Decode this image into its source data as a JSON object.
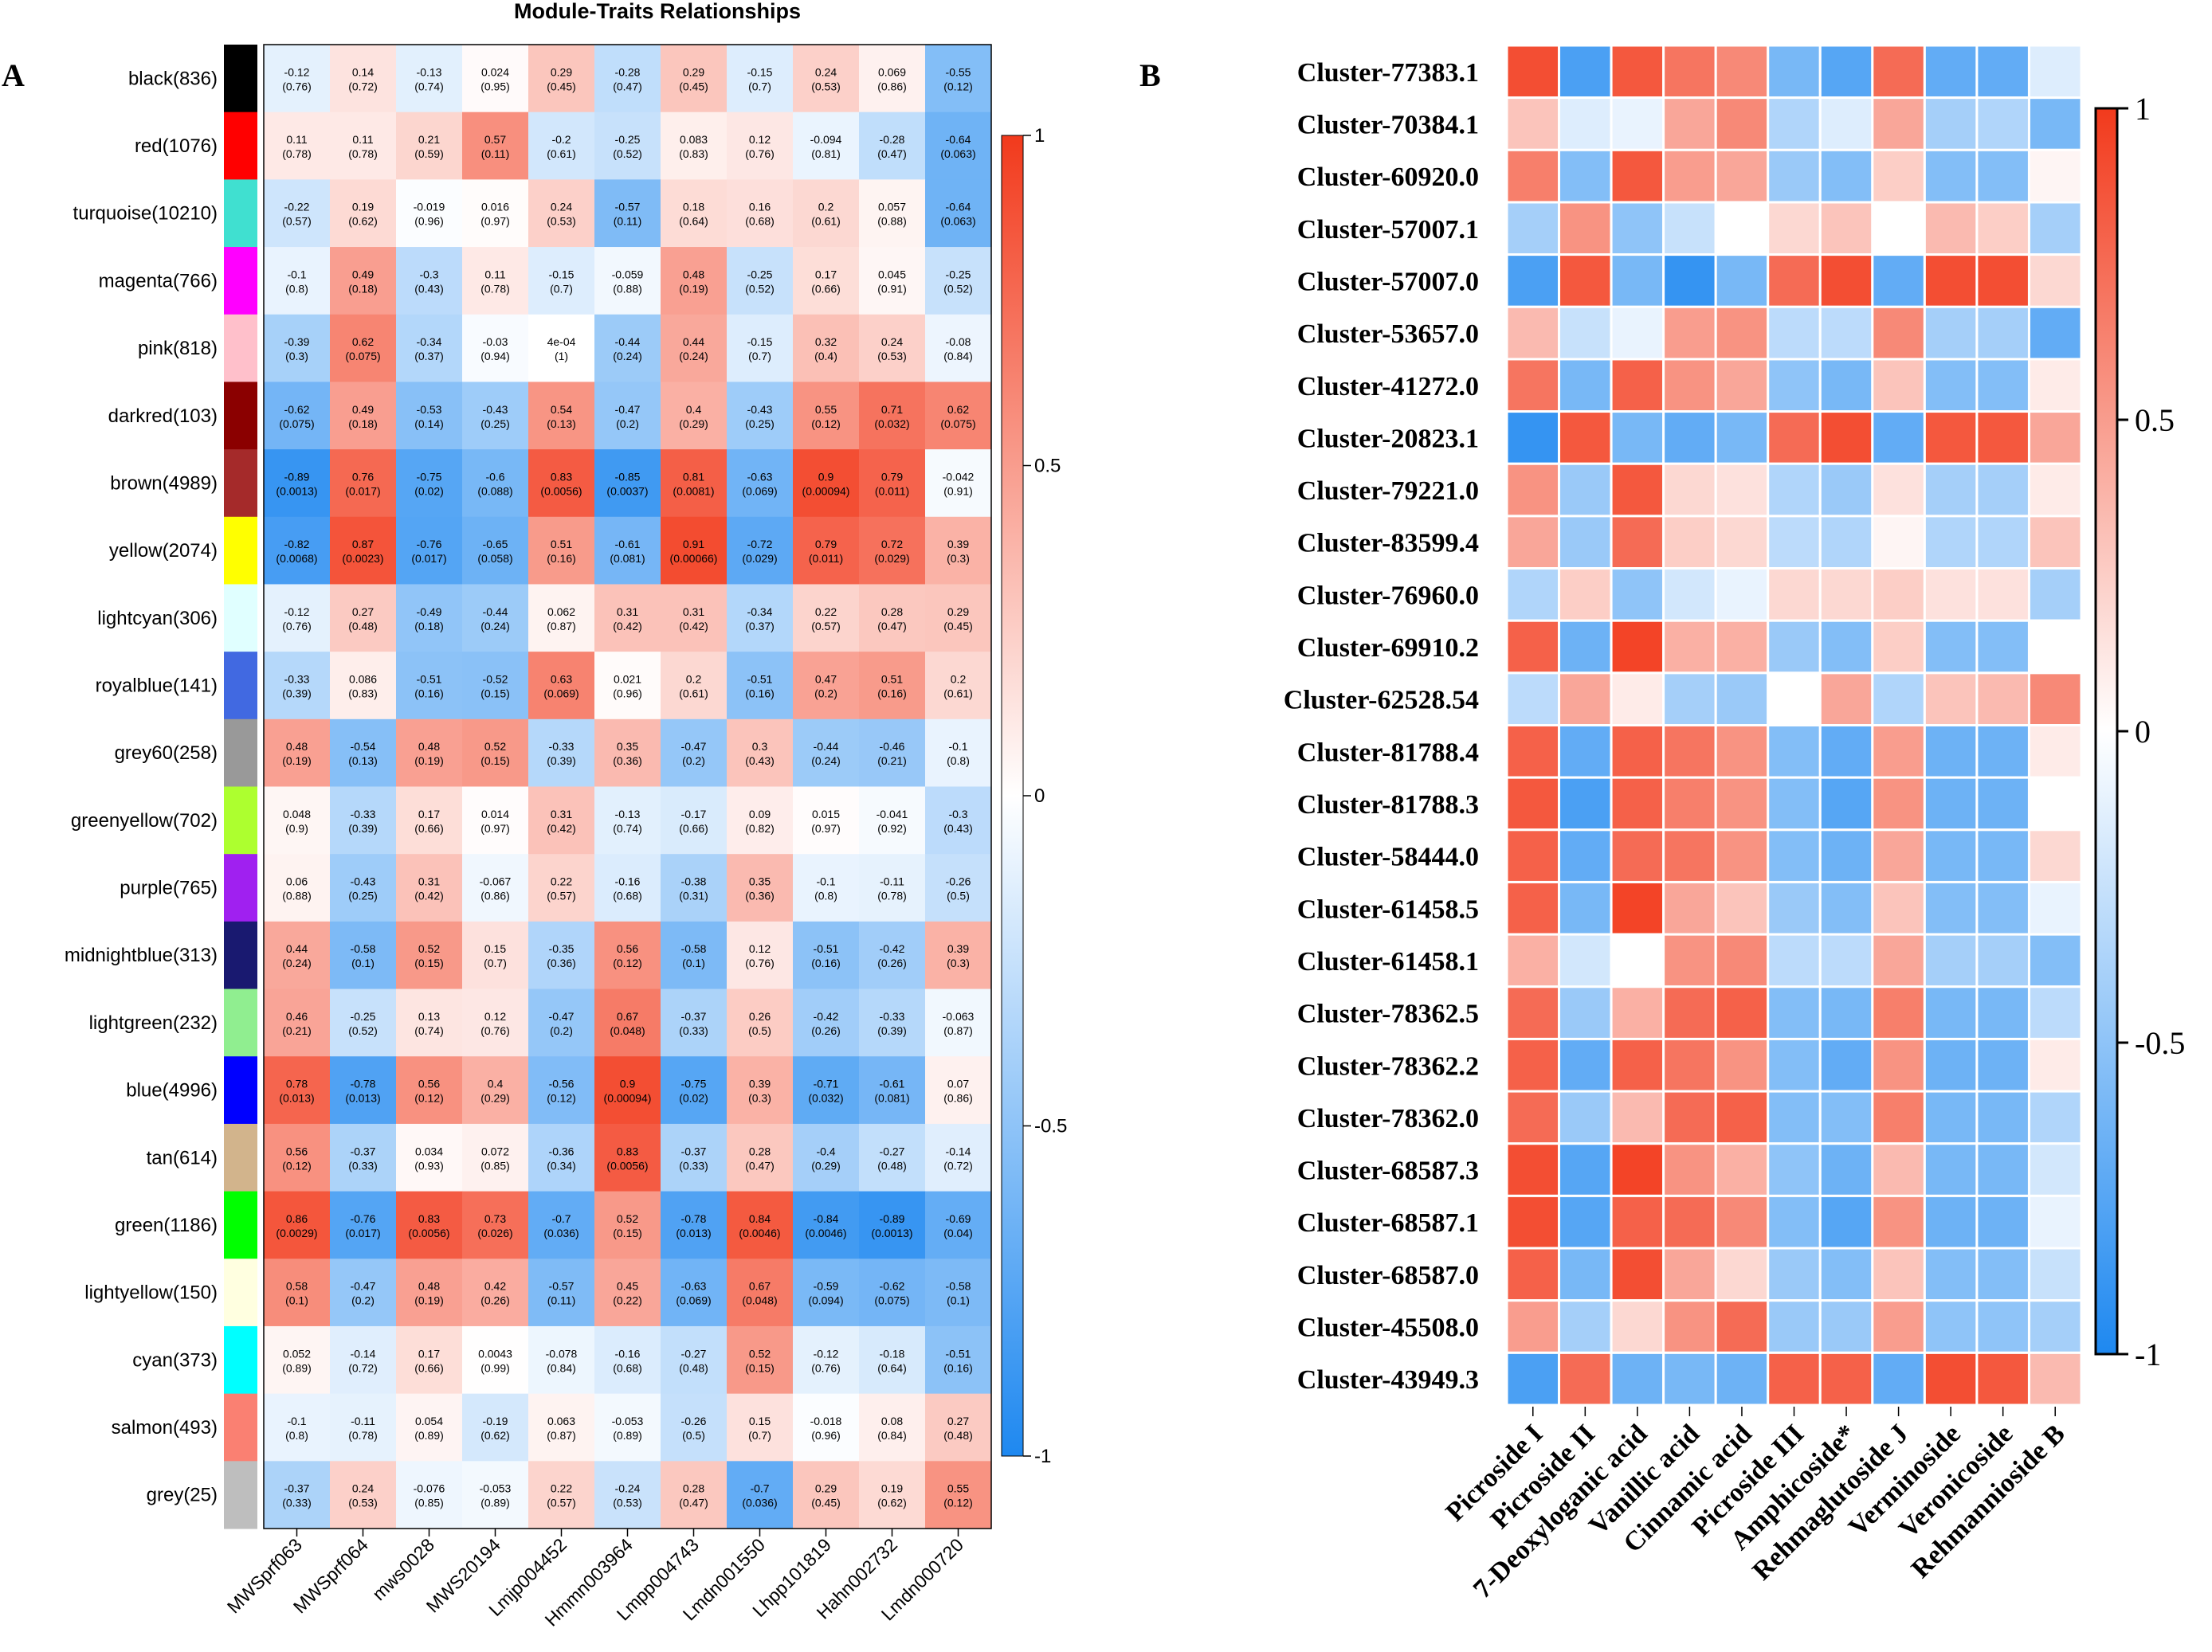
{
  "panel_a": {
    "letter": "A",
    "chart_data": {
      "type": "heatmap",
      "title": "Module-Traits Relationships",
      "modules": [
        {
          "label": "black(836)",
          "color": "#000000"
        },
        {
          "label": "red(1076)",
          "color": "#ff0000"
        },
        {
          "label": "turquoise(10210)",
          "color": "#40e0d0"
        },
        {
          "label": "magenta(766)",
          "color": "#ff00ff"
        },
        {
          "label": "pink(818)",
          "color": "#ffc0cb"
        },
        {
          "label": "darkred(103)",
          "color": "#8b0000"
        },
        {
          "label": "brown(4989)",
          "color": "#a52a2a"
        },
        {
          "label": "yellow(2074)",
          "color": "#ffff00"
        },
        {
          "label": "lightcyan(306)",
          "color": "#e0ffff"
        },
        {
          "label": "royalblue(141)",
          "color": "#4169e1"
        },
        {
          "label": "grey60(258)",
          "color": "#999999"
        },
        {
          "label": "greenyellow(702)",
          "color": "#adff2f"
        },
        {
          "label": "purple(765)",
          "color": "#a020f0"
        },
        {
          "label": "midnightblue(313)",
          "color": "#191970"
        },
        {
          "label": "lightgreen(232)",
          "color": "#90ee90"
        },
        {
          "label": "blue(4996)",
          "color": "#0000ff"
        },
        {
          "label": "tan(614)",
          "color": "#d2b48c"
        },
        {
          "label": "green(1186)",
          "color": "#00ff00"
        },
        {
          "label": "lightyellow(150)",
          "color": "#ffffe0"
        },
        {
          "label": "cyan(373)",
          "color": "#00ffff"
        },
        {
          "label": "salmon(493)",
          "color": "#fa8072"
        },
        {
          "label": "grey(25)",
          "color": "#bebebe"
        }
      ],
      "traits": [
        "MWSprf063",
        "MWSprf064",
        "mws0028",
        "MWS20194",
        "Lmjp004452",
        "Hmmn003964",
        "Lmpp004743",
        "Lmdn001550",
        "Lhpp101819",
        "Hahn002732",
        "Lmdn000720"
      ],
      "values": [
        [
          "-0.12",
          "0.14",
          "-0.13",
          "0.024",
          "0.29",
          "-0.28",
          "0.29",
          "-0.15",
          "0.24",
          "0.069",
          "-0.55"
        ],
        [
          "0.11",
          "0.11",
          "0.21",
          "0.57",
          "-0.2",
          "-0.25",
          "0.083",
          "0.12",
          "-0.094",
          "-0.28",
          "-0.64"
        ],
        [
          "-0.22",
          "0.19",
          "-0.019",
          "0.016",
          "0.24",
          "-0.57",
          "0.18",
          "0.16",
          "0.2",
          "0.057",
          "-0.64"
        ],
        [
          "-0.1",
          "0.49",
          "-0.3",
          "0.11",
          "-0.15",
          "-0.059",
          "0.48",
          "-0.25",
          "0.17",
          "0.045",
          "-0.25"
        ],
        [
          "-0.39",
          "0.62",
          "-0.34",
          "-0.03",
          "4e-04",
          "-0.44",
          "0.44",
          "-0.15",
          "0.32",
          "0.24",
          "-0.08"
        ],
        [
          "-0.62",
          "0.49",
          "-0.53",
          "-0.43",
          "0.54",
          "-0.47",
          "0.4",
          "-0.43",
          "0.55",
          "0.71",
          "0.62"
        ],
        [
          "-0.89",
          "0.76",
          "-0.75",
          "-0.6",
          "0.83",
          "-0.85",
          "0.81",
          "-0.63",
          "0.9",
          "0.79",
          "-0.042"
        ],
        [
          "-0.82",
          "0.87",
          "-0.76",
          "-0.65",
          "0.51",
          "-0.61",
          "0.91",
          "-0.72",
          "0.79",
          "0.72",
          "0.39"
        ],
        [
          "-0.12",
          "0.27",
          "-0.49",
          "-0.44",
          "0.062",
          "0.31",
          "0.31",
          "-0.34",
          "0.22",
          "0.28",
          "0.29"
        ],
        [
          "-0.33",
          "0.086",
          "-0.51",
          "-0.52",
          "0.63",
          "0.021",
          "0.2",
          "-0.51",
          "0.47",
          "0.51",
          "0.2"
        ],
        [
          "0.48",
          "-0.54",
          "0.48",
          "0.52",
          "-0.33",
          "0.35",
          "-0.47",
          "0.3",
          "-0.44",
          "-0.46",
          "-0.1"
        ],
        [
          "0.048",
          "-0.33",
          "0.17",
          "0.014",
          "0.31",
          "-0.13",
          "-0.17",
          "0.09",
          "0.015",
          "-0.041",
          "-0.3"
        ],
        [
          "0.06",
          "-0.43",
          "0.31",
          "-0.067",
          "0.22",
          "-0.16",
          "-0.38",
          "0.35",
          "-0.1",
          "-0.11",
          "-0.26"
        ],
        [
          "0.44",
          "-0.58",
          "0.52",
          "0.15",
          "-0.35",
          "0.56",
          "-0.58",
          "0.12",
          "-0.51",
          "-0.42",
          "0.39"
        ],
        [
          "0.46",
          "-0.25",
          "0.13",
          "0.12",
          "-0.47",
          "0.67",
          "-0.37",
          "0.26",
          "-0.42",
          "-0.33",
          "-0.063"
        ],
        [
          "0.78",
          "-0.78",
          "0.56",
          "0.4",
          "-0.56",
          "0.9",
          "-0.75",
          "0.39",
          "-0.71",
          "-0.61",
          "0.07"
        ],
        [
          "0.56",
          "-0.37",
          "0.034",
          "0.072",
          "-0.36",
          "0.83",
          "-0.37",
          "0.28",
          "-0.4",
          "-0.27",
          "-0.14"
        ],
        [
          "0.86",
          "-0.76",
          "0.83",
          "0.73",
          "-0.7",
          "0.52",
          "-0.78",
          "0.84",
          "-0.84",
          "-0.89",
          "-0.69"
        ],
        [
          "0.58",
          "-0.47",
          "0.48",
          "0.42",
          "-0.57",
          "0.45",
          "-0.63",
          "0.67",
          "-0.59",
          "-0.62",
          "-0.58"
        ],
        [
          "0.052",
          "-0.14",
          "0.17",
          "0.0043",
          "-0.078",
          "-0.16",
          "-0.27",
          "0.52",
          "-0.12",
          "-0.18",
          "-0.51"
        ],
        [
          "-0.1",
          "-0.11",
          "0.054",
          "-0.19",
          "0.063",
          "-0.053",
          "-0.26",
          "0.15",
          "-0.018",
          "0.08",
          "0.27"
        ],
        [
          "-0.37",
          "0.24",
          "-0.076",
          "-0.053",
          "0.22",
          "-0.24",
          "0.28",
          "-0.7",
          "0.29",
          "0.19",
          "0.55"
        ]
      ],
      "pvalues": [
        [
          "(0.76)",
          "(0.72)",
          "(0.74)",
          "(0.95)",
          "(0.45)",
          "(0.47)",
          "(0.45)",
          "(0.7)",
          "(0.53)",
          "(0.86)",
          "(0.12)"
        ],
        [
          "(0.78)",
          "(0.78)",
          "(0.59)",
          "(0.11)",
          "(0.61)",
          "(0.52)",
          "(0.83)",
          "(0.76)",
          "(0.81)",
          "(0.47)",
          "(0.063)"
        ],
        [
          "(0.57)",
          "(0.62)",
          "(0.96)",
          "(0.97)",
          "(0.53)",
          "(0.11)",
          "(0.64)",
          "(0.68)",
          "(0.61)",
          "(0.88)",
          "(0.063)"
        ],
        [
          "(0.8)",
          "(0.18)",
          "(0.43)",
          "(0.78)",
          "(0.7)",
          "(0.88)",
          "(0.19)",
          "(0.52)",
          "(0.66)",
          "(0.91)",
          "(0.52)"
        ],
        [
          "(0.3)",
          "(0.075)",
          "(0.37)",
          "(0.94)",
          "(1)",
          "(0.24)",
          "(0.24)",
          "(0.7)",
          "(0.4)",
          "(0.53)",
          "(0.84)"
        ],
        [
          "(0.075)",
          "(0.18)",
          "(0.14)",
          "(0.25)",
          "(0.13)",
          "(0.2)",
          "(0.29)",
          "(0.25)",
          "(0.12)",
          "(0.032)",
          "(0.075)"
        ],
        [
          "(0.0013)",
          "(0.017)",
          "(0.02)",
          "(0.088)",
          "(0.0056)",
          "(0.0037)",
          "(0.0081)",
          "(0.069)",
          "(0.00094)",
          "(0.011)",
          "(0.91)"
        ],
        [
          "(0.0068)",
          "(0.0023)",
          "(0.017)",
          "(0.058)",
          "(0.16)",
          "(0.081)",
          "(0.00066)",
          "(0.029)",
          "(0.011)",
          "(0.029)",
          "(0.3)"
        ],
        [
          "(0.76)",
          "(0.48)",
          "(0.18)",
          "(0.24)",
          "(0.87)",
          "(0.42)",
          "(0.42)",
          "(0.37)",
          "(0.57)",
          "(0.47)",
          "(0.45)"
        ],
        [
          "(0.39)",
          "(0.83)",
          "(0.16)",
          "(0.15)",
          "(0.069)",
          "(0.96)",
          "(0.61)",
          "(0.16)",
          "(0.2)",
          "(0.16)",
          "(0.61)"
        ],
        [
          "(0.19)",
          "(0.13)",
          "(0.19)",
          "(0.15)",
          "(0.39)",
          "(0.36)",
          "(0.2)",
          "(0.43)",
          "(0.24)",
          "(0.21)",
          "(0.8)"
        ],
        [
          "(0.9)",
          "(0.39)",
          "(0.66)",
          "(0.97)",
          "(0.42)",
          "(0.74)",
          "(0.66)",
          "(0.82)",
          "(0.97)",
          "(0.92)",
          "(0.43)"
        ],
        [
          "(0.88)",
          "(0.25)",
          "(0.42)",
          "(0.86)",
          "(0.57)",
          "(0.68)",
          "(0.31)",
          "(0.36)",
          "(0.8)",
          "(0.78)",
          "(0.5)"
        ],
        [
          "(0.24)",
          "(0.1)",
          "(0.15)",
          "(0.7)",
          "(0.36)",
          "(0.12)",
          "(0.1)",
          "(0.76)",
          "(0.16)",
          "(0.26)",
          "(0.3)"
        ],
        [
          "(0.21)",
          "(0.52)",
          "(0.74)",
          "(0.76)",
          "(0.2)",
          "(0.048)",
          "(0.33)",
          "(0.5)",
          "(0.26)",
          "(0.39)",
          "(0.87)"
        ],
        [
          "(0.013)",
          "(0.013)",
          "(0.12)",
          "(0.29)",
          "(0.12)",
          "(0.00094)",
          "(0.02)",
          "(0.3)",
          "(0.032)",
          "(0.081)",
          "(0.86)"
        ],
        [
          "(0.12)",
          "(0.33)",
          "(0.93)",
          "(0.85)",
          "(0.34)",
          "(0.0056)",
          "(0.33)",
          "(0.47)",
          "(0.29)",
          "(0.48)",
          "(0.72)"
        ],
        [
          "(0.0029)",
          "(0.017)",
          "(0.0056)",
          "(0.026)",
          "(0.036)",
          "(0.15)",
          "(0.013)",
          "(0.0046)",
          "(0.0046)",
          "(0.0013)",
          "(0.04)"
        ],
        [
          "(0.1)",
          "(0.2)",
          "(0.19)",
          "(0.26)",
          "(0.11)",
          "(0.22)",
          "(0.069)",
          "(0.048)",
          "(0.094)",
          "(0.075)",
          "(0.1)"
        ],
        [
          "(0.89)",
          "(0.72)",
          "(0.66)",
          "(0.99)",
          "(0.84)",
          "(0.68)",
          "(0.48)",
          "(0.15)",
          "(0.76)",
          "(0.64)",
          "(0.16)"
        ],
        [
          "(0.8)",
          "(0.78)",
          "(0.89)",
          "(0.62)",
          "(0.87)",
          "(0.89)",
          "(0.5)",
          "(0.7)",
          "(0.96)",
          "(0.84)",
          "(0.48)"
        ],
        [
          "(0.33)",
          "(0.53)",
          "(0.85)",
          "(0.89)",
          "(0.57)",
          "(0.53)",
          "(0.47)",
          "(0.036)",
          "(0.45)",
          "(0.62)",
          "(0.12)"
        ]
      ],
      "color_scale": {
        "low": "#1e88f0",
        "mid": "#ffffff",
        "high": "#f23a1c",
        "range": [
          -1,
          1
        ]
      },
      "legend_ticks": [
        "1",
        "0.5",
        "0",
        "-0.5",
        "-1"
      ]
    }
  },
  "panel_b": {
    "letter": "B",
    "chart_data": {
      "type": "heatmap",
      "clusters": [
        "Cluster-77383.1",
        "Cluster-70384.1",
        "Cluster-60920.0",
        "Cluster-57007.1",
        "Cluster-57007.0",
        "Cluster-53657.0",
        "Cluster-41272.0",
        "Cluster-20823.1",
        "Cluster-79221.0",
        "Cluster-83599.4",
        "Cluster-76960.0",
        "Cluster-69910.2",
        "Cluster-62528.54",
        "Cluster-81788.4",
        "Cluster-81788.3",
        "Cluster-58444.0",
        "Cluster-61458.5",
        "Cluster-61458.1",
        "Cluster-78362.5",
        "Cluster-78362.2",
        "Cluster-78362.0",
        "Cluster-68587.3",
        "Cluster-68587.1",
        "Cluster-68587.0",
        "Cluster-45508.0",
        "Cluster-43949.3"
      ],
      "traits": [
        "Picroside I",
        "Picroside II",
        "7-Deoxyloganic acid",
        "Vanillic acid",
        "Cinnamic acid",
        "Picroside III",
        "Amphicoside*",
        "Rehmaglutoside J",
        "Verminoside",
        "Veronicoside",
        "Rehmannioside B"
      ],
      "values": [
        [
          0.9,
          -0.8,
          0.85,
          0.7,
          0.6,
          -0.6,
          -0.75,
          0.75,
          -0.7,
          -0.7,
          -0.15
        ],
        [
          0.3,
          -0.15,
          -0.1,
          0.45,
          0.6,
          -0.35,
          -0.15,
          0.45,
          -0.4,
          -0.35,
          -0.6
        ],
        [
          0.65,
          -0.55,
          0.85,
          0.5,
          0.45,
          -0.45,
          -0.55,
          0.25,
          -0.55,
          -0.55,
          0.05
        ],
        [
          -0.4,
          0.55,
          -0.5,
          -0.25,
          0.0,
          0.2,
          0.3,
          0.0,
          0.35,
          0.25,
          -0.4
        ],
        [
          -0.8,
          0.85,
          -0.6,
          -0.9,
          -0.6,
          0.75,
          0.9,
          -0.7,
          0.9,
          0.9,
          0.2
        ],
        [
          0.35,
          -0.25,
          -0.1,
          0.5,
          0.55,
          -0.3,
          -0.3,
          0.6,
          -0.4,
          -0.4,
          -0.7
        ],
        [
          0.7,
          -0.6,
          0.8,
          0.55,
          0.45,
          -0.5,
          -0.6,
          0.3,
          -0.55,
          -0.55,
          0.1
        ],
        [
          -0.9,
          0.85,
          -0.6,
          -0.7,
          -0.6,
          0.75,
          0.9,
          -0.7,
          0.85,
          0.85,
          0.45
        ],
        [
          0.55,
          -0.45,
          0.85,
          0.2,
          0.15,
          -0.35,
          -0.45,
          0.15,
          -0.4,
          -0.4,
          0.1
        ],
        [
          0.45,
          -0.45,
          0.75,
          0.25,
          0.2,
          -0.3,
          -0.35,
          0.05,
          -0.35,
          -0.35,
          0.3
        ],
        [
          -0.35,
          0.25,
          -0.5,
          -0.2,
          -0.1,
          0.2,
          0.2,
          0.25,
          0.15,
          0.15,
          -0.4
        ],
        [
          0.8,
          -0.65,
          0.95,
          0.4,
          0.4,
          -0.45,
          -0.55,
          0.25,
          -0.55,
          -0.55,
          0.0
        ],
        [
          -0.3,
          0.45,
          0.1,
          -0.4,
          -0.45,
          0.0,
          0.45,
          -0.35,
          0.3,
          0.35,
          0.6
        ],
        [
          0.8,
          -0.7,
          0.8,
          0.7,
          0.55,
          -0.55,
          -0.7,
          0.5,
          -0.65,
          -0.65,
          0.1
        ],
        [
          0.85,
          -0.8,
          0.8,
          0.65,
          0.55,
          -0.55,
          -0.75,
          0.55,
          -0.65,
          -0.65,
          0.0
        ],
        [
          0.8,
          -0.7,
          0.75,
          0.7,
          0.55,
          -0.55,
          -0.65,
          0.45,
          -0.6,
          -0.6,
          0.2
        ],
        [
          0.8,
          -0.6,
          0.95,
          0.45,
          0.3,
          -0.45,
          -0.55,
          0.3,
          -0.55,
          -0.55,
          -0.1
        ],
        [
          0.4,
          -0.2,
          0.0,
          0.55,
          0.6,
          -0.3,
          -0.3,
          0.45,
          -0.4,
          -0.4,
          -0.55
        ],
        [
          0.75,
          -0.45,
          0.4,
          0.75,
          0.8,
          -0.55,
          -0.6,
          0.65,
          -0.6,
          -0.6,
          -0.3
        ],
        [
          0.8,
          -0.7,
          0.8,
          0.7,
          0.55,
          -0.55,
          -0.7,
          0.55,
          -0.65,
          -0.65,
          0.1
        ],
        [
          0.75,
          -0.45,
          0.35,
          0.75,
          0.8,
          -0.55,
          -0.55,
          0.65,
          -0.6,
          -0.6,
          -0.35
        ],
        [
          0.9,
          -0.75,
          0.95,
          0.55,
          0.4,
          -0.5,
          -0.65,
          0.35,
          -0.6,
          -0.6,
          -0.2
        ],
        [
          0.9,
          -0.75,
          0.8,
          0.75,
          0.6,
          -0.55,
          -0.75,
          0.55,
          -0.65,
          -0.65,
          -0.1
        ],
        [
          0.8,
          -0.6,
          0.9,
          0.45,
          0.2,
          -0.45,
          -0.55,
          0.3,
          -0.55,
          -0.55,
          -0.25
        ],
        [
          0.5,
          -0.4,
          0.2,
          0.55,
          0.75,
          -0.45,
          -0.45,
          0.5,
          -0.5,
          -0.5,
          -0.4
        ],
        [
          -0.8,
          0.75,
          -0.65,
          -0.6,
          -0.65,
          0.8,
          0.8,
          -0.7,
          0.9,
          0.85,
          0.35
        ]
      ],
      "color_scale": {
        "low": "#1e88f0",
        "mid": "#ffffff",
        "high": "#f23a1c",
        "range": [
          -1,
          1
        ]
      },
      "legend_ticks": [
        "1",
        "0.5",
        "0",
        "-0.5",
        "-1"
      ]
    }
  }
}
